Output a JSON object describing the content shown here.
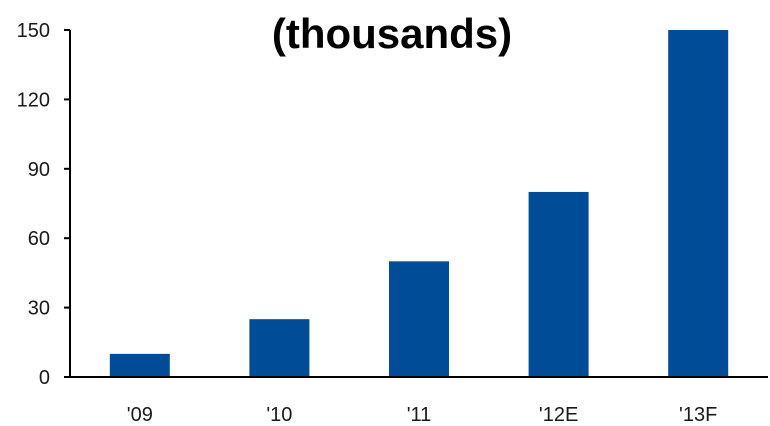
{
  "chart_data": {
    "type": "bar",
    "title": "(thousands)",
    "categories": [
      "'09",
      "'10",
      "'11",
      "'12E",
      "'13F"
    ],
    "values": [
      10,
      25,
      50,
      80,
      150
    ],
    "ylim": [
      0,
      150
    ],
    "yticks": [
      0,
      30,
      60,
      90,
      120,
      150
    ],
    "xlabel": "",
    "ylabel": "",
    "grid": false,
    "legend": "none",
    "bar_color": "#004c97"
  }
}
